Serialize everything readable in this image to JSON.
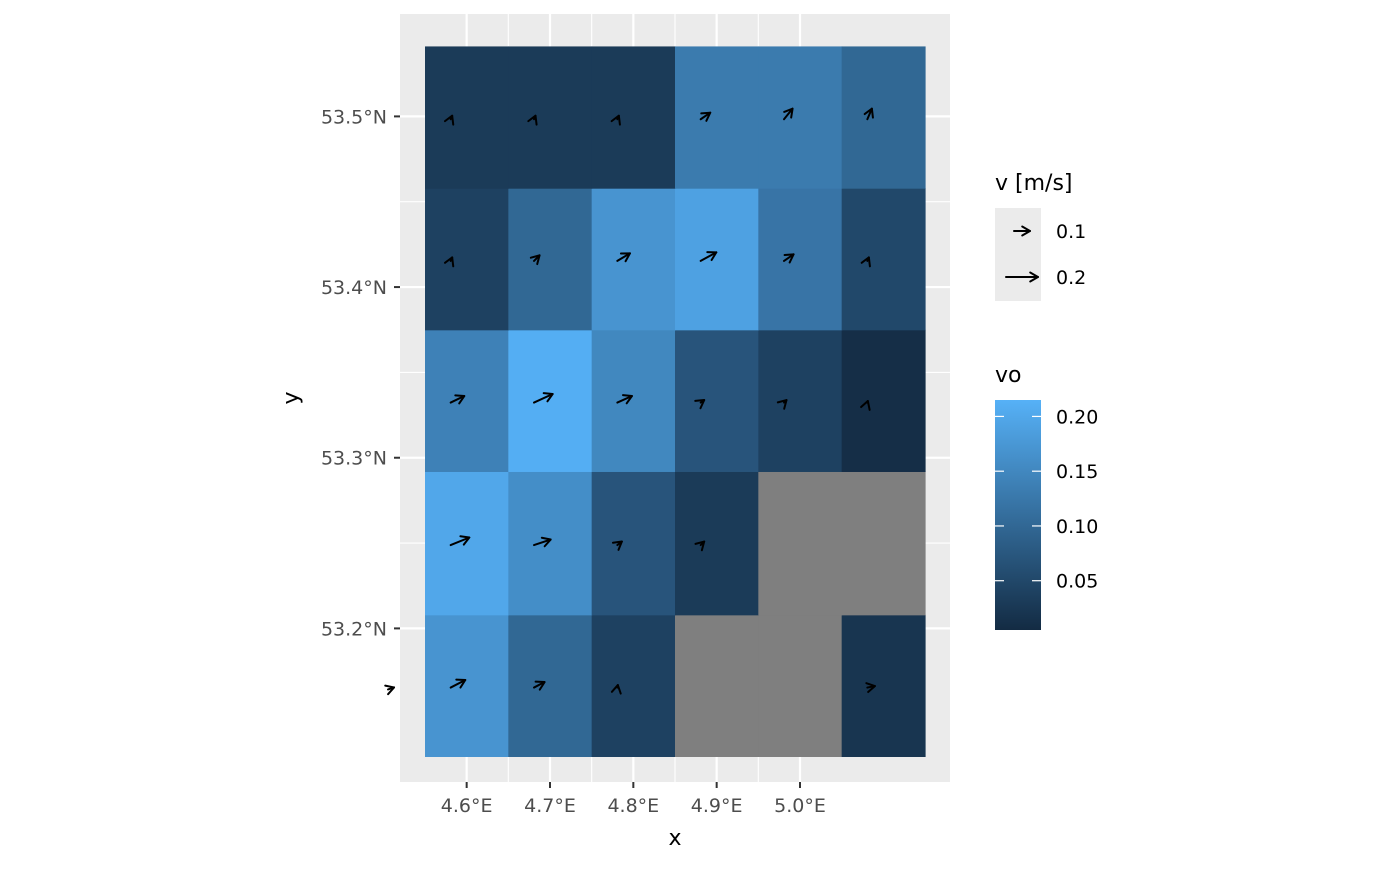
{
  "chart_data": {
    "type": "heatmap",
    "subtype": "raster-with-vector-arrows",
    "xlabel": "x",
    "ylabel": "y",
    "x_ticks": [
      4.6,
      4.7,
      4.8,
      4.9,
      5.0
    ],
    "x_tick_labels": [
      "4.6°E",
      "4.7°E",
      "4.8°E",
      "4.9°E",
      "5.0°E"
    ],
    "y_ticks": [
      53.2,
      53.3,
      53.4,
      53.5
    ],
    "y_tick_labels": [
      "53.2°N",
      "53.3°N",
      "53.4°N",
      "53.5°N"
    ],
    "xlim": [
      4.52,
      5.18
    ],
    "ylim": [
      53.11,
      53.56
    ],
    "grid": true,
    "cell_x_edges": [
      4.55,
      4.65,
      4.75,
      4.85,
      4.95,
      5.05,
      5.15
    ],
    "cell_y_edges": [
      53.125,
      53.208,
      53.292,
      53.375,
      53.458,
      53.541
    ],
    "fill_label": "vo",
    "fill_ticks": [
      0.05,
      0.1,
      0.15,
      0.2
    ],
    "fill_tick_labels": [
      "0.05",
      "0.10",
      "0.15",
      "0.20"
    ],
    "fill_range": [
      0.005,
      0.215
    ],
    "fill_low_color": "#132B43",
    "fill_high_color": "#56B1F7",
    "na_color": "#7F7F7F",
    "legend_position": "right",
    "vo": [
      [
        0.17,
        0.1,
        0.04,
        null,
        null,
        0.02
      ],
      [
        0.2,
        0.16,
        0.07,
        0.03,
        null,
        null
      ],
      [
        0.14,
        0.21,
        0.15,
        0.07,
        0.04,
        0.01
      ],
      [
        0.04,
        0.1,
        0.17,
        0.19,
        0.12,
        0.05
      ],
      [
        0.03,
        0.03,
        0.03,
        0.13,
        0.13,
        0.1
      ]
    ],
    "u": [
      [
        0.14,
        0.1,
        0.0,
        null,
        null,
        0.07
      ],
      [
        0.18,
        0.16,
        0.04,
        0.03,
        null,
        null
      ],
      [
        0.13,
        0.18,
        0.14,
        0.03,
        0.02,
        0.0
      ],
      [
        0.01,
        0.05,
        0.12,
        0.15,
        0.09,
        0.01
      ],
      [
        0.01,
        0.01,
        0.01,
        0.09,
        0.08,
        0.04
      ]
    ],
    "v": [
      [
        0.07,
        0.05,
        0.02,
        null,
        null,
        0.01
      ],
      [
        0.07,
        0.05,
        0.03,
        0.03,
        null,
        null
      ],
      [
        0.06,
        0.08,
        0.06,
        0.02,
        0.02,
        0.01
      ],
      [
        0.03,
        0.05,
        0.07,
        0.08,
        0.06,
        0.03
      ],
      [
        0.03,
        0.03,
        0.03,
        0.06,
        0.1,
        0.1
      ]
    ],
    "edge_arrow": {
      "x": 4.52,
      "y": 53.166,
      "u": 0.04,
      "v": 0.0
    },
    "arrow_legend": {
      "title": "v [m/s]",
      "entries": [
        {
          "value": 0.1,
          "label": "0.1"
        },
        {
          "value": 0.2,
          "label": "0.2"
        }
      ]
    }
  }
}
